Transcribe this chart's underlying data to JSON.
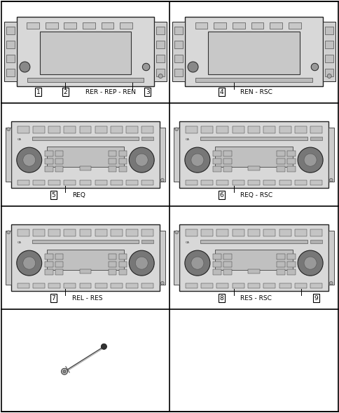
{
  "background_color": "#ffffff",
  "figsize": [
    4.85,
    5.89
  ],
  "dpi": 100,
  "col_split": 242,
  "row_splits": [
    0,
    147,
    294,
    441,
    589
  ],
  "cells": [
    {
      "row": 0,
      "col": 0,
      "type": "nav_radio",
      "labels": [
        "1",
        "2"
      ],
      "label3": "3",
      "label_text": "RER - REP - REN"
    },
    {
      "row": 0,
      "col": 1,
      "type": "nav_radio",
      "labels": [
        "4"
      ],
      "label3": null,
      "label_text": "REN - RSC"
    },
    {
      "row": 1,
      "col": 0,
      "type": "cd_radio",
      "labels": [
        "5"
      ],
      "label3": null,
      "label_text": "REQ"
    },
    {
      "row": 1,
      "col": 1,
      "type": "cd_radio",
      "labels": [
        "6"
      ],
      "label3": null,
      "label_text": "REQ - RSC"
    },
    {
      "row": 2,
      "col": 0,
      "type": "cd_radio",
      "labels": [
        "7"
      ],
      "label3": null,
      "label_text": "REL - RES"
    },
    {
      "row": 2,
      "col": 1,
      "type": "cd_radio",
      "labels": [
        "8"
      ],
      "label3": "9",
      "label_text": "RES - RSC"
    },
    {
      "row": 3,
      "col": 0,
      "type": "antenna",
      "labels": [],
      "label3": null,
      "label_text": ""
    },
    {
      "row": 3,
      "col": 1,
      "type": "empty",
      "labels": [],
      "label3": null,
      "label_text": ""
    }
  ]
}
